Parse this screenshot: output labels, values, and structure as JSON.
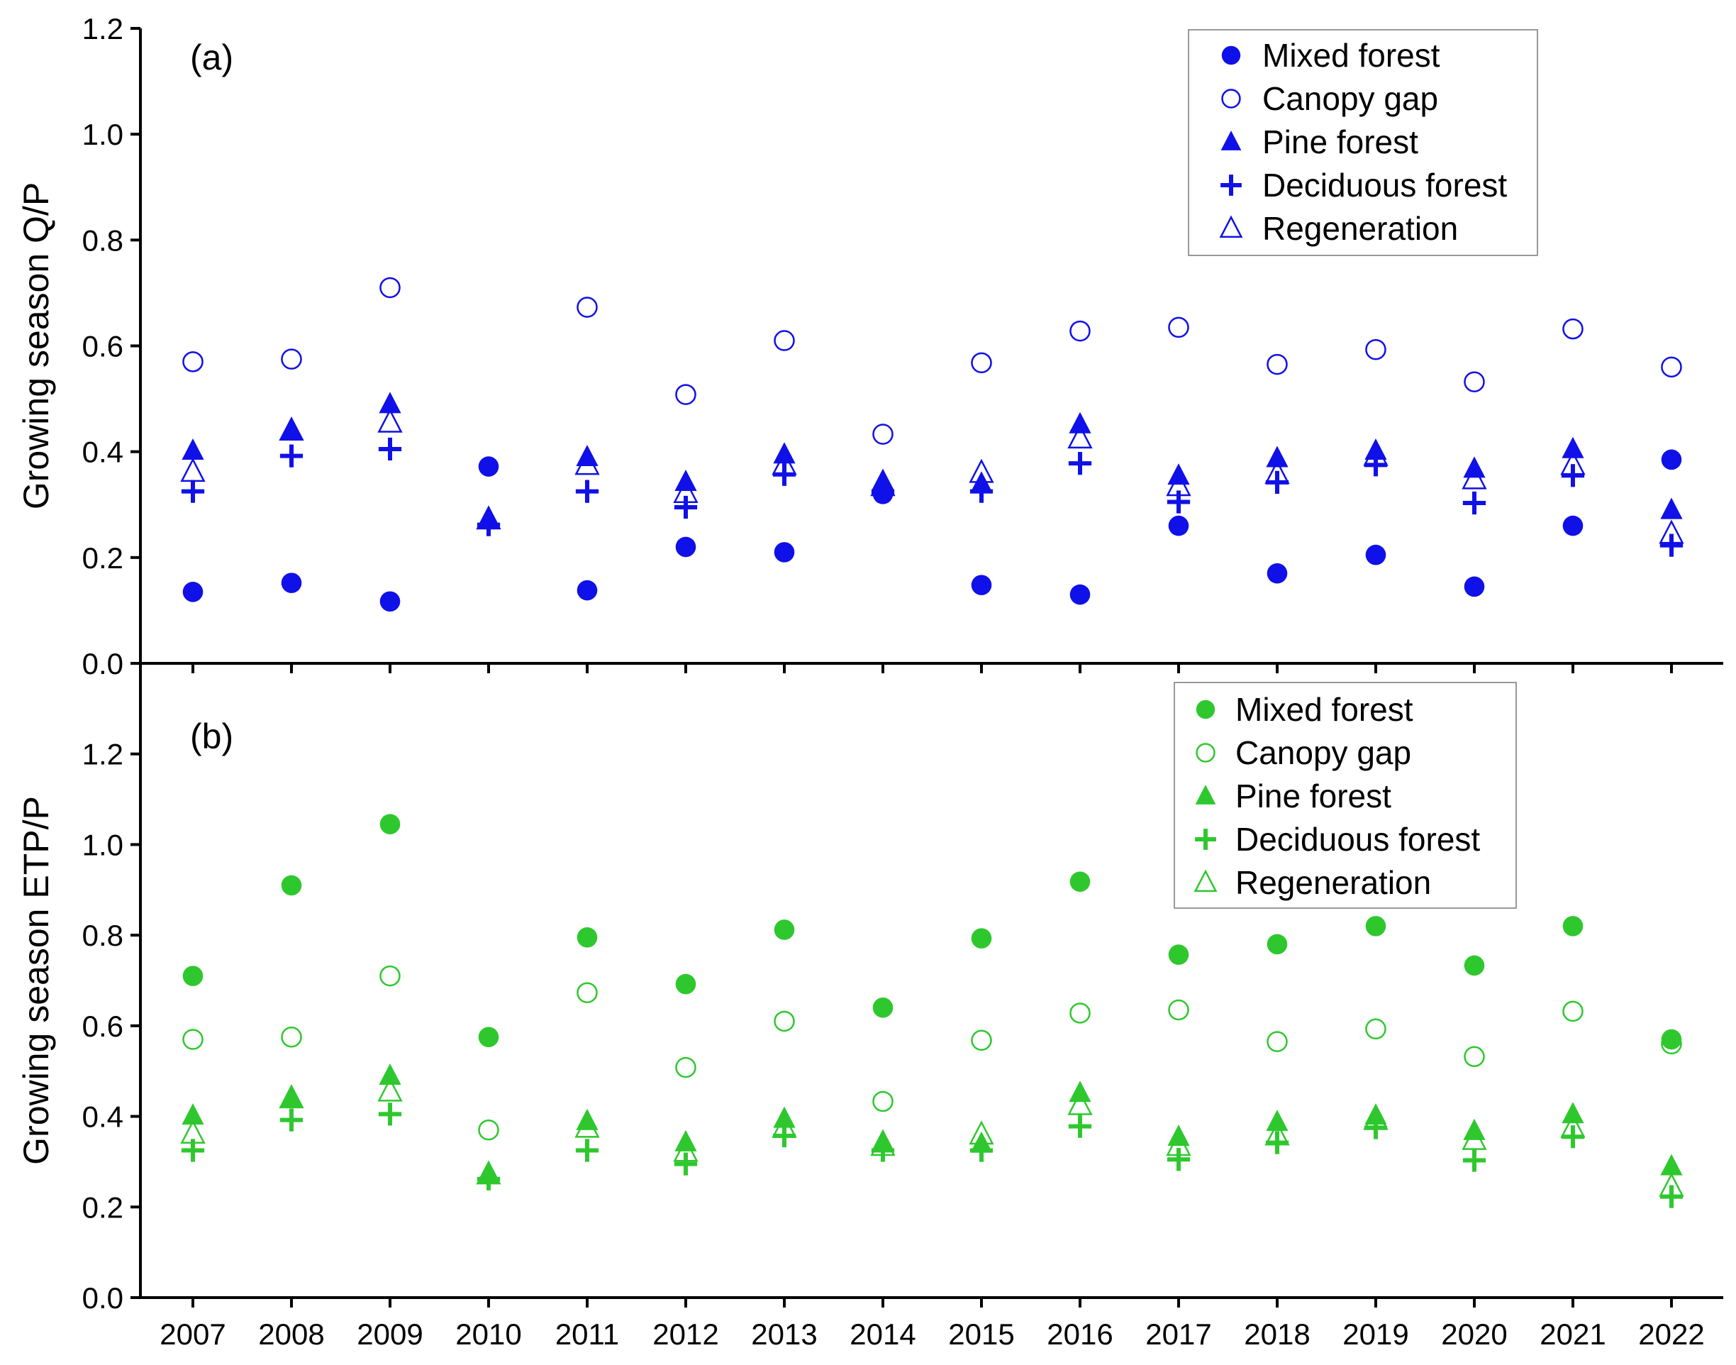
{
  "chart_data": [
    {
      "type": "scatter",
      "panel_label": "(a)",
      "ylabel": "Growing season Q/P",
      "xlabel": "",
      "ylim": [
        0,
        1.2
      ],
      "yticks": [
        "0.0",
        "0.2",
        "0.4",
        "0.6",
        "0.8",
        "1.0",
        "1.2"
      ],
      "color": "#1010e8",
      "legend_position": "top-right",
      "categories": [
        "2007",
        "2008",
        "2009",
        "2010",
        "2011",
        "2012",
        "2013",
        "2014",
        "2015",
        "2016",
        "2017",
        "2018",
        "2019",
        "2020",
        "2021",
        "2022"
      ],
      "series": [
        {
          "name": "Mixed forest",
          "marker": "filled-circle",
          "values": [
            0.135,
            0.152,
            0.117,
            0.372,
            0.138,
            0.22,
            0.21,
            0.32,
            0.148,
            0.13,
            0.26,
            0.17,
            0.205,
            0.145,
            0.26,
            0.385
          ]
        },
        {
          "name": "Canopy gap",
          "marker": "open-circle",
          "values": [
            0.57,
            0.575,
            0.71,
            null,
            0.673,
            0.508,
            0.61,
            0.433,
            0.568,
            0.628,
            0.635,
            0.565,
            0.593,
            0.532,
            0.632,
            0.56
          ]
        },
        {
          "name": "Pine forest",
          "marker": "filled-triangle",
          "values": [
            0.402,
            0.44,
            0.49,
            0.272,
            0.39,
            0.343,
            0.395,
            0.345,
            0.34,
            0.452,
            0.355,
            0.388,
            0.402,
            0.368,
            0.405,
            0.29
          ]
        },
        {
          "name": "Deciduous forest",
          "marker": "plus",
          "values": [
            0.325,
            0.392,
            0.405,
            0.262,
            0.325,
            0.295,
            0.357,
            0.325,
            0.325,
            0.378,
            0.305,
            0.342,
            0.375,
            0.303,
            0.355,
            0.223
          ]
        },
        {
          "name": "Regeneration",
          "marker": "open-triangle",
          "values": [
            0.362,
            0.44,
            0.455,
            0.272,
            0.375,
            0.322,
            0.375,
            0.335,
            0.36,
            0.425,
            0.335,
            0.358,
            0.392,
            0.348,
            0.375,
            0.245
          ]
        }
      ]
    },
    {
      "type": "scatter",
      "panel_label": "(b)",
      "ylabel": "Growing season ETP/P",
      "xlabel": "",
      "ylim": [
        0,
        1.4
      ],
      "yticks": [
        "0.0",
        "0.2",
        "0.4",
        "0.6",
        "0.8",
        "1.0",
        "1.2"
      ],
      "color": "#2ec82e",
      "legend_position": "top-right",
      "categories": [
        "2007",
        "2008",
        "2009",
        "2010",
        "2011",
        "2012",
        "2013",
        "2014",
        "2015",
        "2016",
        "2017",
        "2018",
        "2019",
        "2020",
        "2021",
        "2022"
      ],
      "series": [
        {
          "name": "Mixed forest",
          "marker": "filled-circle",
          "values": [
            0.71,
            0.91,
            1.045,
            0.575,
            0.795,
            0.692,
            0.812,
            0.64,
            0.793,
            0.918,
            0.757,
            0.78,
            0.82,
            0.733,
            0.82,
            0.57
          ]
        },
        {
          "name": "Canopy gap",
          "marker": "open-circle",
          "values": [
            0.57,
            0.575,
            0.71,
            0.37,
            0.673,
            0.508,
            0.61,
            0.433,
            0.568,
            0.628,
            0.635,
            0.565,
            0.593,
            0.532,
            0.632,
            0.56
          ]
        },
        {
          "name": "Pine forest",
          "marker": "filled-triangle",
          "values": [
            0.402,
            0.44,
            0.49,
            0.272,
            0.39,
            0.343,
            0.395,
            0.345,
            0.34,
            0.452,
            0.355,
            0.388,
            0.402,
            0.368,
            0.405,
            0.29
          ]
        },
        {
          "name": "Deciduous forest",
          "marker": "plus",
          "values": [
            0.325,
            0.392,
            0.405,
            0.262,
            0.325,
            0.295,
            0.357,
            0.325,
            0.325,
            0.378,
            0.305,
            0.342,
            0.375,
            0.303,
            0.355,
            0.223
          ]
        },
        {
          "name": "Regeneration",
          "marker": "open-triangle",
          "values": [
            0.362,
            0.44,
            0.455,
            0.272,
            0.375,
            0.322,
            0.375,
            0.335,
            0.36,
            0.425,
            0.335,
            0.358,
            0.392,
            0.348,
            0.375,
            0.245
          ]
        }
      ]
    }
  ]
}
